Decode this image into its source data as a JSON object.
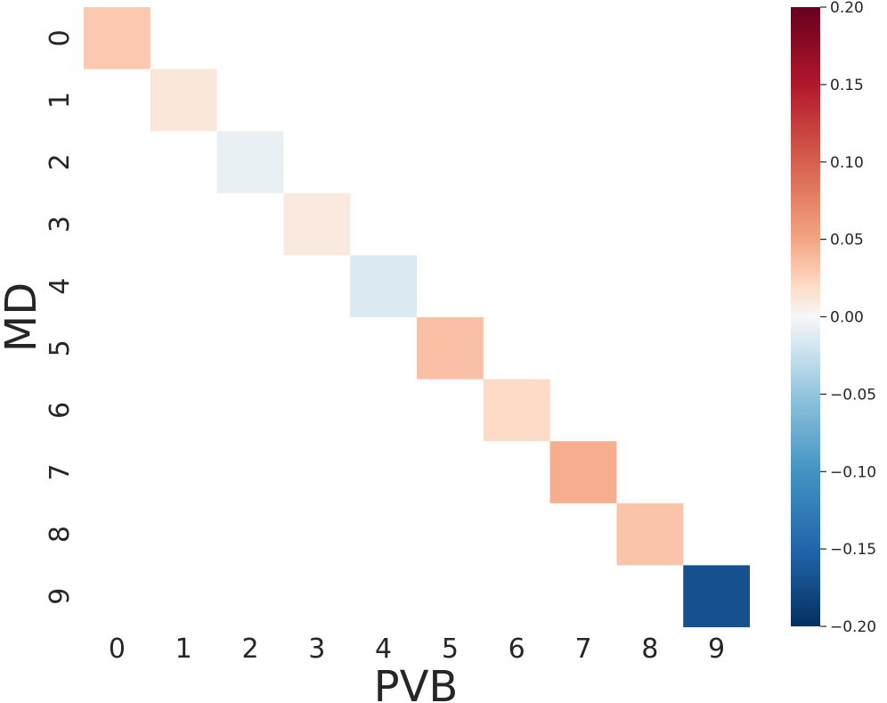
{
  "chart_data": {
    "type": "heatmap",
    "xlabel": "PVB",
    "ylabel": "MD",
    "x_categories": [
      "0",
      "1",
      "2",
      "3",
      "4",
      "5",
      "6",
      "7",
      "8",
      "9"
    ],
    "y_categories": [
      "0",
      "1",
      "2",
      "3",
      "4",
      "5",
      "6",
      "7",
      "8",
      "9"
    ],
    "cells": [
      {
        "x": "0",
        "y": "0",
        "value": 0.03
      },
      {
        "x": "1",
        "y": "1",
        "value": 0.012
      },
      {
        "x": "2",
        "y": "2",
        "value": -0.008
      },
      {
        "x": "3",
        "y": "3",
        "value": 0.01
      },
      {
        "x": "4",
        "y": "4",
        "value": -0.015
      },
      {
        "x": "5",
        "y": "5",
        "value": 0.035
      },
      {
        "x": "6",
        "y": "6",
        "value": 0.02
      },
      {
        "x": "7",
        "y": "7",
        "value": 0.045
      },
      {
        "x": "8",
        "y": "8",
        "value": 0.033
      },
      {
        "x": "9",
        "y": "9",
        "value": -0.17
      }
    ],
    "off_diagonal": "masked",
    "colormap": "RdBu_r",
    "vmin": -0.2,
    "vmax": 0.2,
    "colorbar": {
      "position": "right",
      "ticks": [
        0.2,
        0.15,
        0.1,
        0.05,
        0.0,
        -0.05,
        -0.1,
        -0.15,
        -0.2
      ],
      "tick_labels": [
        "0.20",
        "0.15",
        "0.10",
        "0.05",
        "0.00",
        "−0.05",
        "−0.10",
        "−0.15",
        "−0.20"
      ]
    },
    "grid": false
  }
}
